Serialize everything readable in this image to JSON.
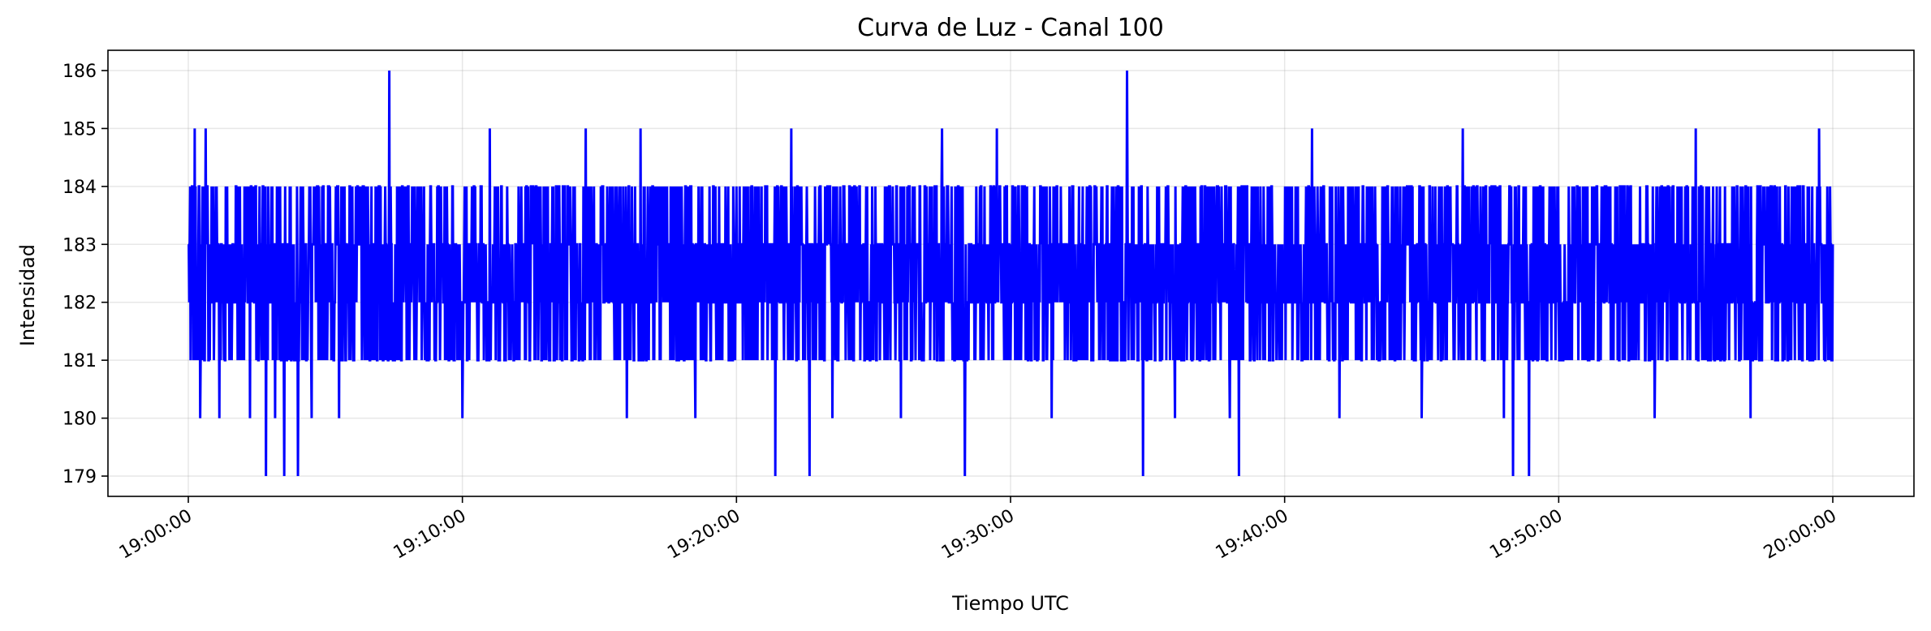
{
  "chart_data": {
    "type": "line",
    "title": "Curva de Luz - Canal 100",
    "xlabel": "Tiempo UTC",
    "ylabel": "Intensidad",
    "x_range": [
      "19:00:00",
      "20:00:00"
    ],
    "x_ticks": [
      "19:00:00",
      "19:10:00",
      "19:20:00",
      "19:30:00",
      "19:40:00",
      "19:50:00",
      "20:00:00"
    ],
    "y_ticks": [
      179,
      180,
      181,
      182,
      183,
      184,
      185,
      186
    ],
    "ylim": [
      178.65,
      186.35
    ],
    "grid": true,
    "series": [
      {
        "color": "#0000ff",
        "sampling": "approx. 1 reading per second, integer counts; representative points shown",
        "points": [
          [
            "19:00:00",
            183
          ],
          [
            "19:00:05",
            181
          ],
          [
            "19:00:10",
            184
          ],
          [
            "19:00:14",
            185
          ],
          [
            "19:00:20",
            182
          ],
          [
            "19:00:26",
            180
          ],
          [
            "19:00:32",
            183
          ],
          [
            "19:00:38",
            185
          ],
          [
            "19:00:44",
            181
          ],
          [
            "19:00:52",
            182
          ],
          [
            "19:01:00",
            184
          ],
          [
            "19:01:08",
            180
          ],
          [
            "19:01:15",
            183
          ],
          [
            "19:01:30",
            181
          ],
          [
            "19:01:45",
            184
          ],
          [
            "19:02:00",
            182
          ],
          [
            "19:02:15",
            180
          ],
          [
            "19:02:30",
            183
          ],
          [
            "19:02:45",
            181
          ],
          [
            "19:02:50",
            179
          ],
          [
            "19:03:00",
            182
          ],
          [
            "19:03:10",
            180
          ],
          [
            "19:03:20",
            183
          ],
          [
            "19:03:30",
            179
          ],
          [
            "19:03:45",
            181
          ],
          [
            "19:04:00",
            179
          ],
          [
            "19:04:15",
            182
          ],
          [
            "19:04:30",
            180
          ],
          [
            "19:04:45",
            181
          ],
          [
            "19:05:00",
            183
          ],
          [
            "19:05:30",
            180
          ],
          [
            "19:06:00",
            182
          ],
          [
            "19:06:30",
            181
          ],
          [
            "19:06:50",
            184
          ],
          [
            "19:07:10",
            183
          ],
          [
            "19:07:20",
            186
          ],
          [
            "19:07:30",
            182
          ],
          [
            "19:08:00",
            181
          ],
          [
            "19:08:30",
            184
          ],
          [
            "19:09:00",
            182
          ],
          [
            "19:09:30",
            181
          ],
          [
            "19:10:00",
            180
          ],
          [
            "19:10:30",
            183
          ],
          [
            "19:11:00",
            185
          ],
          [
            "19:11:30",
            182
          ],
          [
            "19:12:00",
            181
          ],
          [
            "19:12:30",
            184
          ],
          [
            "19:13:00",
            182
          ],
          [
            "19:13:30",
            183
          ],
          [
            "19:14:00",
            181
          ],
          [
            "19:14:30",
            185
          ],
          [
            "19:15:00",
            182
          ],
          [
            "19:15:30",
            183
          ],
          [
            "19:16:00",
            180
          ],
          [
            "19:16:30",
            185
          ],
          [
            "19:17:00",
            181
          ],
          [
            "19:17:30",
            183
          ],
          [
            "19:18:00",
            184
          ],
          [
            "19:18:30",
            180
          ],
          [
            "19:19:00",
            182
          ],
          [
            "19:19:30",
            183
          ],
          [
            "19:20:00",
            184
          ],
          [
            "19:20:30",
            181
          ],
          [
            "19:21:00",
            183
          ],
          [
            "19:21:25",
            179
          ],
          [
            "19:21:40",
            182
          ],
          [
            "19:22:00",
            185
          ],
          [
            "19:22:30",
            181
          ],
          [
            "19:22:40",
            179
          ],
          [
            "19:23:00",
            183
          ],
          [
            "19:23:30",
            180
          ],
          [
            "19:24:00",
            182
          ],
          [
            "19:24:30",
            184
          ],
          [
            "19:25:00",
            181
          ],
          [
            "19:25:30",
            183
          ],
          [
            "19:26:00",
            180
          ],
          [
            "19:26:30",
            184
          ],
          [
            "19:27:00",
            182
          ],
          [
            "19:27:30",
            185
          ],
          [
            "19:28:00",
            181
          ],
          [
            "19:28:20",
            179
          ],
          [
            "19:28:40",
            183
          ],
          [
            "19:29:00",
            182
          ],
          [
            "19:29:30",
            185
          ],
          [
            "19:30:00",
            181
          ],
          [
            "19:30:30",
            184
          ],
          [
            "19:31:00",
            182
          ],
          [
            "19:31:30",
            180
          ],
          [
            "19:32:00",
            183
          ],
          [
            "19:32:30",
            184
          ],
          [
            "19:33:00",
            181
          ],
          [
            "19:33:30",
            183
          ],
          [
            "19:34:00",
            182
          ],
          [
            "19:34:15",
            186
          ],
          [
            "19:34:30",
            181
          ],
          [
            "19:34:50",
            179
          ],
          [
            "19:35:10",
            183
          ],
          [
            "19:35:40",
            184
          ],
          [
            "19:36:00",
            180
          ],
          [
            "19:36:30",
            182
          ],
          [
            "19:37:00",
            181
          ],
          [
            "19:37:30",
            183
          ],
          [
            "19:38:00",
            180
          ],
          [
            "19:38:20",
            179
          ],
          [
            "19:38:40",
            182
          ],
          [
            "19:39:00",
            181
          ],
          [
            "19:39:30",
            183
          ],
          [
            "19:40:00",
            182
          ],
          [
            "19:40:30",
            181
          ],
          [
            "19:41:00",
            185
          ],
          [
            "19:41:30",
            182
          ],
          [
            "19:42:00",
            180
          ],
          [
            "19:42:30",
            183
          ],
          [
            "19:43:00",
            184
          ],
          [
            "19:43:30",
            181
          ],
          [
            "19:44:00",
            182
          ],
          [
            "19:44:30",
            183
          ],
          [
            "19:45:00",
            180
          ],
          [
            "19:45:30",
            184
          ],
          [
            "19:46:00",
            182
          ],
          [
            "19:46:30",
            185
          ],
          [
            "19:47:00",
            181
          ],
          [
            "19:47:30",
            183
          ],
          [
            "19:48:00",
            180
          ],
          [
            "19:48:20",
            179
          ],
          [
            "19:48:40",
            182
          ],
          [
            "19:48:55",
            179
          ],
          [
            "19:49:10",
            181
          ],
          [
            "19:49:30",
            183
          ],
          [
            "19:50:00",
            182
          ],
          [
            "19:50:30",
            184
          ],
          [
            "19:51:00",
            182
          ],
          [
            "19:51:30",
            183
          ],
          [
            "19:52:00",
            181
          ],
          [
            "19:52:30",
            184
          ],
          [
            "19:53:00",
            182
          ],
          [
            "19:53:30",
            180
          ],
          [
            "19:54:00",
            184
          ],
          [
            "19:54:30",
            182
          ],
          [
            "19:55:00",
            185
          ],
          [
            "19:55:30",
            183
          ],
          [
            "19:56:00",
            181
          ],
          [
            "19:56:30",
            184
          ],
          [
            "19:57:00",
            180
          ],
          [
            "19:57:30",
            183
          ],
          [
            "19:58:00",
            181
          ],
          [
            "19:58:30",
            184
          ],
          [
            "19:59:00",
            182
          ],
          [
            "19:59:30",
            185
          ],
          [
            "19:59:50",
            181
          ],
          [
            "20:00:00",
            183
          ]
        ]
      }
    ]
  }
}
